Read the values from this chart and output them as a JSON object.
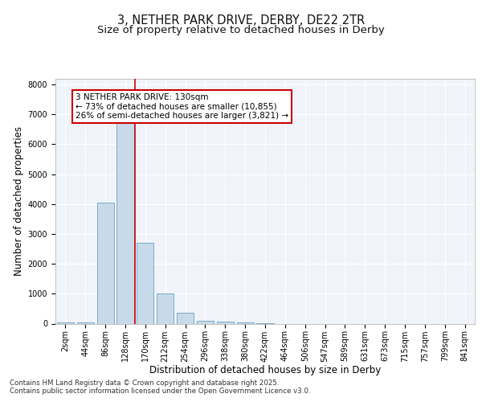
{
  "title_line1": "3, NETHER PARK DRIVE, DERBY, DE22 2TR",
  "title_line2": "Size of property relative to detached houses in Derby",
  "xlabel": "Distribution of detached houses by size in Derby",
  "ylabel": "Number of detached properties",
  "categories": [
    "2sqm",
    "44sqm",
    "86sqm",
    "128sqm",
    "170sqm",
    "212sqm",
    "254sqm",
    "296sqm",
    "338sqm",
    "380sqm",
    "422sqm",
    "464sqm",
    "506sqm",
    "547sqm",
    "589sqm",
    "631sqm",
    "673sqm",
    "715sqm",
    "757sqm",
    "799sqm",
    "841sqm"
  ],
  "values": [
    30,
    30,
    4050,
    6700,
    2700,
    1000,
    350,
    100,
    75,
    50,
    25,
    0,
    0,
    0,
    0,
    0,
    0,
    0,
    0,
    0,
    0
  ],
  "bar_color": "#c8daea",
  "bar_edge_color": "#6aa0c0",
  "vline_x": 3.5,
  "vline_color": "#cc0000",
  "annotation_text": "3 NETHER PARK DRIVE: 130sqm\n← 73% of detached houses are smaller (10,855)\n26% of semi-detached houses are larger (3,821) →",
  "annotation_box_color": "#cc0000",
  "annotation_text_color": "#000000",
  "ylim": [
    0,
    8200
  ],
  "yticks": [
    0,
    1000,
    2000,
    3000,
    4000,
    5000,
    6000,
    7000,
    8000
  ],
  "background_color": "#ffffff",
  "plot_bg_color": "#f0f4fa",
  "footer_line1": "Contains HM Land Registry data © Crown copyright and database right 2025.",
  "footer_line2": "Contains public sector information licensed under the Open Government Licence v3.0.",
  "title_fontsize": 10.5,
  "subtitle_fontsize": 9.5,
  "tick_fontsize": 7,
  "label_fontsize": 8.5,
  "annot_fontsize": 7.5
}
